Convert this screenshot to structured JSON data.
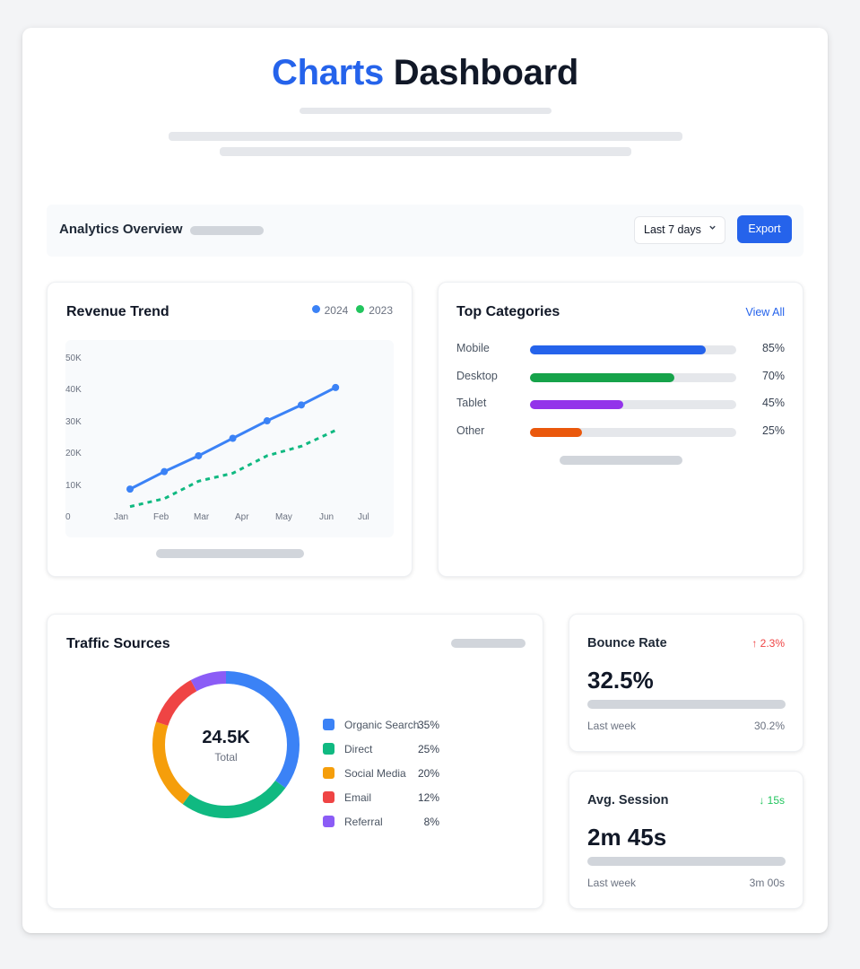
{
  "header": {
    "title_accent": "Charts",
    "title_main": "Dashboard"
  },
  "toolbar": {
    "title": "Analytics Overview",
    "range_select": {
      "selected": "Last 7 days"
    },
    "export_label": "Export"
  },
  "revenue": {
    "title": "Revenue Trend",
    "legend": [
      {
        "label": "2024",
        "color": "#3b82f6"
      },
      {
        "label": "2023",
        "color": "#22c55e"
      }
    ]
  },
  "categories": {
    "title": "Top Categories",
    "view_all": "View All",
    "items": [
      {
        "label": "Mobile",
        "value": 85,
        "pct": "85%",
        "color": "#2563eb"
      },
      {
        "label": "Desktop",
        "value": 70,
        "pct": "70%",
        "color": "#16a34a"
      },
      {
        "label": "Tablet",
        "value": 45,
        "pct": "45%",
        "color": "#9333ea"
      },
      {
        "label": "Other",
        "value": 25,
        "pct": "25%",
        "color": "#ea580c"
      }
    ]
  },
  "traffic": {
    "title": "Traffic Sources",
    "total_value": "24.5K",
    "total_label": "Total",
    "sources": [
      {
        "label": "Organic Search",
        "pct": "35%",
        "value": 35,
        "color": "#3b82f6"
      },
      {
        "label": "Direct",
        "pct": "25%",
        "value": 25,
        "color": "#10b981"
      },
      {
        "label": "Social Media",
        "pct": "20%",
        "value": 20,
        "color": "#f59e0b"
      },
      {
        "label": "Email",
        "pct": "12%",
        "value": 12,
        "color": "#ef4444"
      },
      {
        "label": "Referral",
        "pct": "8%",
        "value": 8,
        "color": "#8b5cf6"
      }
    ]
  },
  "stats": [
    {
      "title": "Bounce Rate",
      "delta": "↑ 2.3%",
      "delta_color": "#ef4444",
      "value": "32.5%",
      "foot_label": "Last week",
      "foot_value": "30.2%"
    },
    {
      "title": "Avg. Session",
      "delta": "↓ 15s",
      "delta_color": "#22c55e",
      "value": "2m 45s",
      "foot_label": "Last week",
      "foot_value": "3m 00s"
    }
  ],
  "chart_data": [
    {
      "type": "line",
      "title": "Revenue Trend",
      "xlabel": "",
      "ylabel": "",
      "categories": [
        "Jan",
        "Feb",
        "Mar",
        "Apr",
        "May",
        "Jun",
        "Jul"
      ],
      "y_ticks": [
        "0",
        "10K",
        "20K",
        "30K",
        "40K",
        "50K"
      ],
      "ylim": [
        0,
        50000
      ],
      "grid": false,
      "legend_position": "top-right",
      "series": [
        {
          "name": "2024",
          "style": "solid",
          "markers": true,
          "color": "#3b82f6",
          "values": [
            9000,
            14500,
            19500,
            25000,
            30500,
            35500,
            41000
          ]
        },
        {
          "name": "2023",
          "style": "dashed",
          "markers": false,
          "color": "#10b981",
          "values": [
            3500,
            6000,
            11500,
            14000,
            19500,
            22500,
            27500
          ]
        }
      ]
    },
    {
      "type": "bar",
      "orientation": "horizontal",
      "title": "Top Categories",
      "categories": [
        "Mobile",
        "Desktop",
        "Tablet",
        "Other"
      ],
      "values": [
        85,
        70,
        45,
        25
      ],
      "unit": "%",
      "xlim": [
        0,
        100
      ]
    },
    {
      "type": "pie",
      "variant": "donut",
      "title": "Traffic Sources",
      "center_text": "24.5K Total",
      "categories": [
        "Organic Search",
        "Direct",
        "Social Media",
        "Email",
        "Referral"
      ],
      "values": [
        35,
        25,
        20,
        12,
        8
      ],
      "unit": "%",
      "legend_position": "right"
    }
  ]
}
